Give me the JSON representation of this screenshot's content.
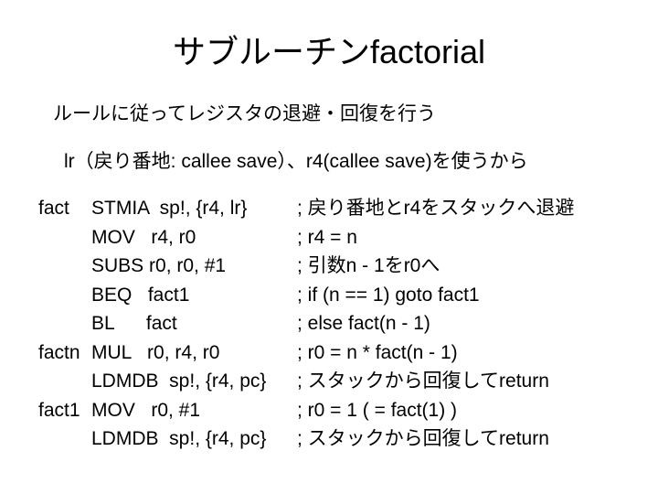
{
  "title": "サブルーチンfactorial",
  "subtitle": "ルールに従ってレジスタの退避・回復を行う",
  "note": "lr（戻り番地: callee save）、r4(callee save)を使うから",
  "code": {
    "rows": [
      {
        "label": "fact",
        "instr": "STMIA  sp!, {r4, lr}",
        "comment": "; 戻り番地とr4をスタックへ退避"
      },
      {
        "label": "",
        "instr": "MOV   r4, r0",
        "comment": "; r4 = n"
      },
      {
        "label": "",
        "instr": "SUBS r0, r0, #1",
        "comment": "; 引数n - 1をr0へ"
      },
      {
        "label": "",
        "instr": "BEQ   fact1",
        "comment": "; if (n == 1) goto fact1"
      },
      {
        "label": "",
        "instr": "BL      fact",
        "comment": "; else fact(n - 1)"
      },
      {
        "label": "factn",
        "instr": "MUL   r0, r4, r0",
        "comment": "; r0 = n * fact(n - 1)"
      },
      {
        "label": "",
        "instr": "LDMDB  sp!, {r4, pc}",
        "comment": "; スタックから回復してreturn"
      },
      {
        "label": "fact1",
        "instr": "MOV   r0, #1",
        "comment": "; r0 = 1 ( = fact(1) )"
      },
      {
        "label": "",
        "instr": "LDMDB  sp!, {r4, pc}",
        "comment": "; スタックから回復してreturn"
      }
    ]
  }
}
